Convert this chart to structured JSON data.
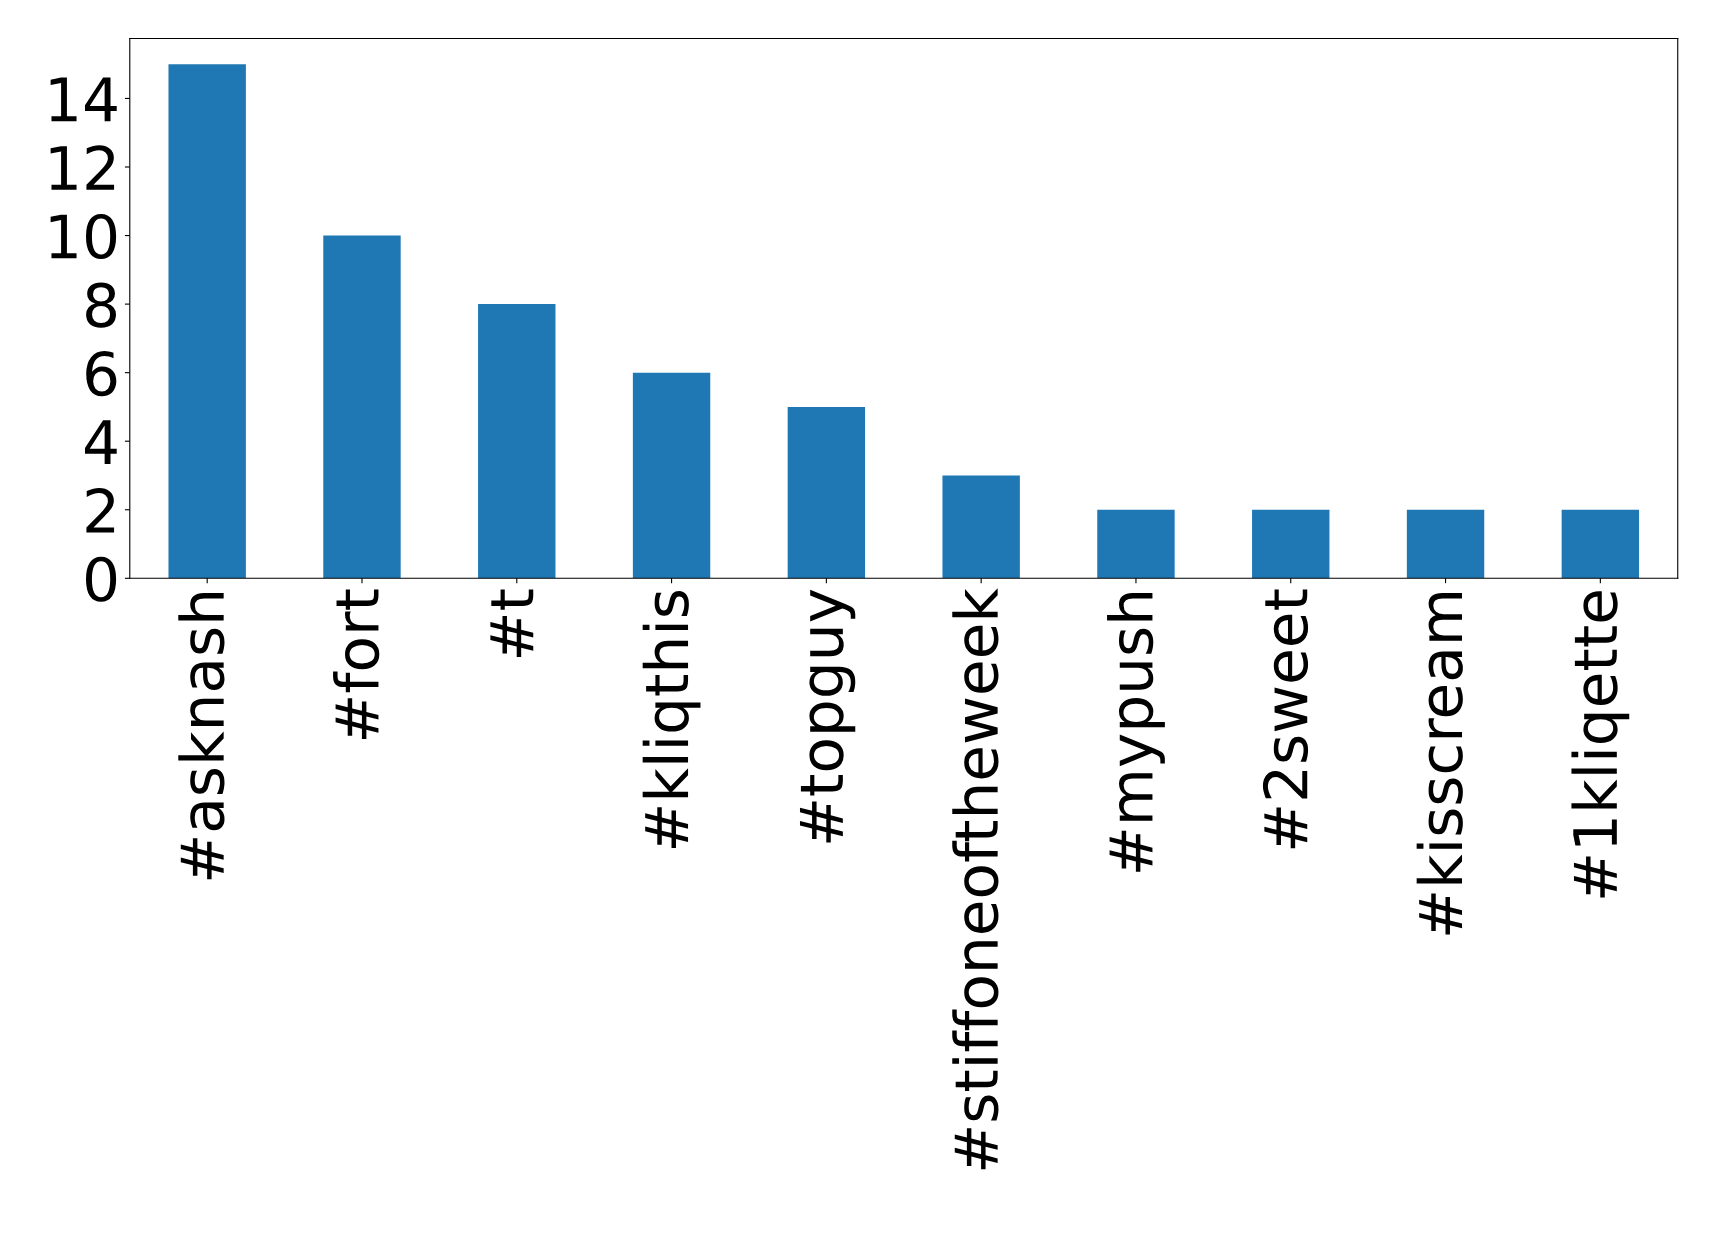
{
  "chart_data": {
    "type": "bar",
    "categories": [
      "#asknash",
      "#fort",
      "#t",
      "#kliqthis",
      "#topguy",
      "#stiffoneoftheweek",
      "#mypush",
      "#2sweet",
      "#kisscream",
      "#1kliqette"
    ],
    "values": [
      15,
      10,
      8,
      6,
      5,
      3,
      2,
      2,
      2,
      2
    ],
    "color": "#1f77b4",
    "ylim": [
      0,
      15.75
    ],
    "yticks": [
      0,
      2,
      4,
      6,
      8,
      10,
      12,
      14
    ],
    "grid": false,
    "legend": false
  }
}
